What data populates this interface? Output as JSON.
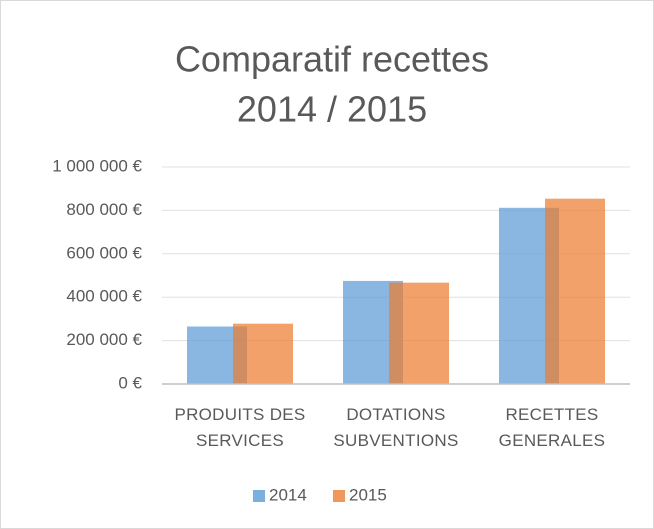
{
  "chart_data": {
    "type": "bar",
    "title": "Comparatif recettes",
    "subtitle": "2014 / 2015",
    "categories": [
      "PRODUITS DES SERVICES",
      "DOTATIONS SUBVENTIONS",
      "RECETTES GENERALES"
    ],
    "series": [
      {
        "name": "2014",
        "color": "#5b9bd5",
        "values": [
          265000,
          475000,
          812000
        ]
      },
      {
        "name": "2015",
        "color": "#ed7d31",
        "values": [
          278000,
          467000,
          854000
        ]
      }
    ],
    "ylim": [
      0,
      1000000
    ],
    "yticks": [
      {
        "value": 0,
        "label": "0 €"
      },
      {
        "value": 200000,
        "label": "200 000 €"
      },
      {
        "value": 400000,
        "label": "400 000 €"
      },
      {
        "value": 600000,
        "label": "600 000 €"
      },
      {
        "value": 800000,
        "label": "800 000 €"
      },
      {
        "value": 1000000,
        "label": "1 000 000 €"
      }
    ],
    "grid": true,
    "legend": "bottom"
  }
}
